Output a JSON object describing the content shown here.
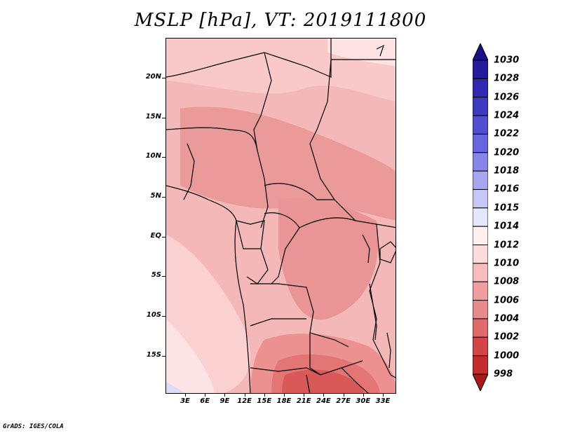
{
  "title": "MSLP [hPa], VT: 2019111800",
  "map": {
    "lat_labels": [
      "20N",
      "15N",
      "10N",
      "5N",
      "EQ",
      "5S",
      "10S",
      "15S"
    ],
    "lon_labels": [
      "3E",
      "6E",
      "9E",
      "12E",
      "15E",
      "18E",
      "21E",
      "24E",
      "27E",
      "30E",
      "33E"
    ]
  },
  "colorbar": {
    "levels": [
      "1030",
      "1028",
      "1026",
      "1024",
      "1022",
      "1020",
      "1018",
      "1016",
      "1015",
      "1014",
      "1012",
      "1010",
      "1008",
      "1006",
      "1004",
      "1002",
      "1000",
      "998"
    ],
    "colors": [
      "#1a0f8a",
      "#231a9e",
      "#2f28b0",
      "#3d39c0",
      "#4f4fd0",
      "#6666de",
      "#8585ea",
      "#a5a5f2",
      "#c6c6f8",
      "#e6e6fc",
      "#fff1f1",
      "#ffdcdc",
      "#f9bcbc",
      "#f29e9e",
      "#e98a8a",
      "#e06a6a",
      "#d54545",
      "#c42b2b",
      "#a81a1a"
    ]
  },
  "credit": "GrADS: IGES/COLA"
}
